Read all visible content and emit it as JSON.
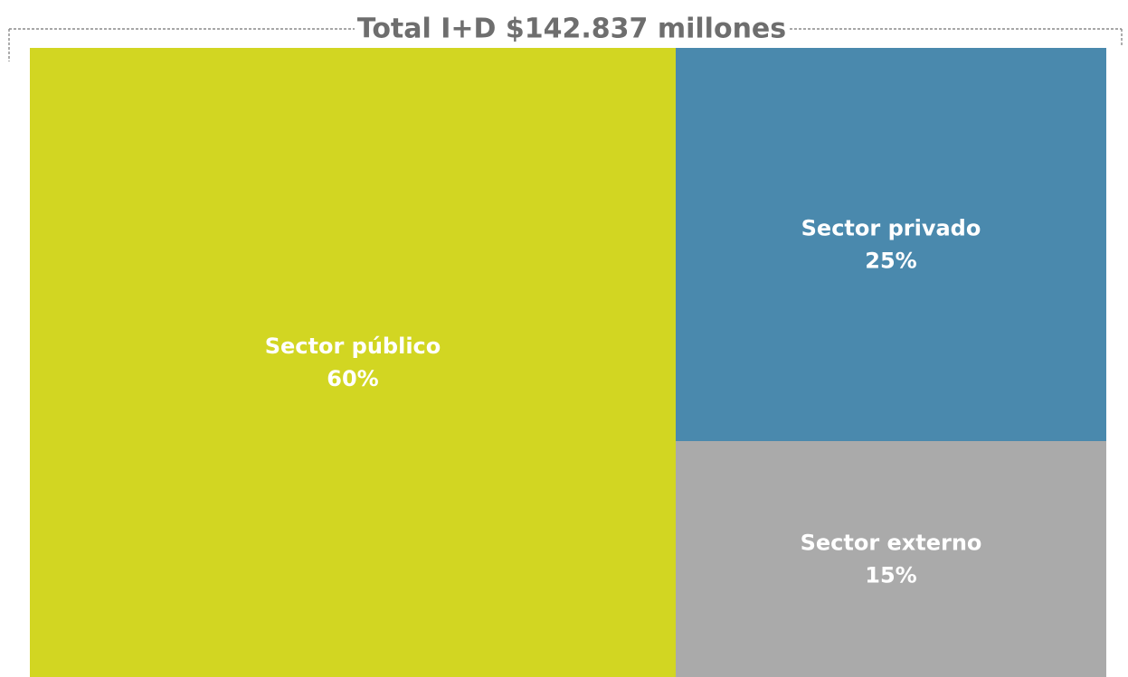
{
  "chart_data": {
    "type": "treemap",
    "title": "Total I+D $142.837 millones",
    "unit": "%",
    "items": [
      {
        "label": "Sector público",
        "value": 60,
        "value_label": "60%",
        "color": "#d2d622"
      },
      {
        "label": "Sector privado",
        "value": 25,
        "value_label": "25%",
        "color": "#4a89ad"
      },
      {
        "label": "Sector externo",
        "value": 15,
        "value_label": "15%",
        "color": "#aaaaaa"
      }
    ]
  },
  "colors": {
    "title": "#6e6e6e",
    "frame_line": "#8a8a8a",
    "tile_text": "#ffffff"
  }
}
